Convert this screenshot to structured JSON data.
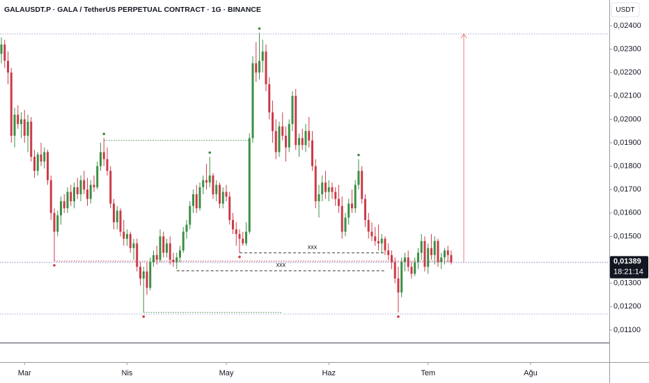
{
  "chart_data": {
    "type": "candlestick",
    "title": "GALAUSDT.P · GALA / TetherUS PERPETUAL CONTRACT · 1G · BINANCE",
    "currency": "USDT",
    "up_color": "#3b8f44",
    "down_color": "#cc3a48",
    "ohlc": [
      [
        0.0228,
        0.0235,
        0.0224,
        0.0232
      ],
      [
        0.0232,
        0.0234,
        0.0222,
        0.0225
      ],
      [
        0.0225,
        0.0229,
        0.0215,
        0.022
      ],
      [
        0.022,
        0.0222,
        0.019,
        0.0193
      ],
      [
        0.0193,
        0.0205,
        0.0188,
        0.0202
      ],
      [
        0.0202,
        0.0206,
        0.0196,
        0.0198
      ],
      [
        0.0198,
        0.0203,
        0.0192,
        0.02
      ],
      [
        0.02,
        0.0204,
        0.019,
        0.0193
      ],
      [
        0.0193,
        0.0202,
        0.0186,
        0.0199
      ],
      [
        0.0199,
        0.0201,
        0.0182,
        0.0184
      ],
      [
        0.0184,
        0.0187,
        0.0175,
        0.0178
      ],
      [
        0.0178,
        0.0186,
        0.0176,
        0.0185
      ],
      [
        0.0185,
        0.019,
        0.018,
        0.0182
      ],
      [
        0.0182,
        0.0188,
        0.0179,
        0.0186
      ],
      [
        0.0186,
        0.0187,
        0.0172,
        0.0174
      ],
      [
        0.0174,
        0.0176,
        0.0157,
        0.016
      ],
      [
        0.016,
        0.0162,
        0.01394,
        0.0152
      ],
      [
        0.0152,
        0.0161,
        0.015,
        0.0159
      ],
      [
        0.0159,
        0.0167,
        0.0155,
        0.0165
      ],
      [
        0.0165,
        0.0168,
        0.016,
        0.0162
      ],
      [
        0.0162,
        0.0171,
        0.016,
        0.0169
      ],
      [
        0.0169,
        0.0172,
        0.0163,
        0.0165
      ],
      [
        0.0165,
        0.0173,
        0.0162,
        0.0171
      ],
      [
        0.0171,
        0.0175,
        0.0166,
        0.0168
      ],
      [
        0.0168,
        0.0176,
        0.0165,
        0.0174
      ],
      [
        0.0174,
        0.0178,
        0.0168,
        0.017
      ],
      [
        0.017,
        0.0175,
        0.0163,
        0.0166
      ],
      [
        0.0166,
        0.0174,
        0.0164,
        0.0172
      ],
      [
        0.0172,
        0.0176,
        0.0169,
        0.0171
      ],
      [
        0.0171,
        0.0182,
        0.017,
        0.018
      ],
      [
        0.018,
        0.019,
        0.0178,
        0.0186
      ],
      [
        0.0186,
        0.0192,
        0.018,
        0.0183
      ],
      [
        0.0183,
        0.0188,
        0.0176,
        0.0178
      ],
      [
        0.0178,
        0.018,
        0.0162,
        0.0164
      ],
      [
        0.0164,
        0.0166,
        0.0153,
        0.0156
      ],
      [
        0.0156,
        0.0163,
        0.0153,
        0.0161
      ],
      [
        0.0161,
        0.0162,
        0.015,
        0.0152
      ],
      [
        0.0152,
        0.0157,
        0.0146,
        0.0149
      ],
      [
        0.0149,
        0.0153,
        0.0146,
        0.0151
      ],
      [
        0.0151,
        0.0152,
        0.0143,
        0.0145
      ],
      [
        0.0145,
        0.0149,
        0.014,
        0.0147
      ],
      [
        0.0147,
        0.0149,
        0.0135,
        0.0137
      ],
      [
        0.0137,
        0.0139,
        0.0129,
        0.0132
      ],
      [
        0.0132,
        0.0137,
        0.01175,
        0.0135
      ],
      [
        0.0135,
        0.0139,
        0.0125,
        0.0128
      ],
      [
        0.0128,
        0.0141,
        0.0127,
        0.0139
      ],
      [
        0.0139,
        0.0144,
        0.0137,
        0.0142
      ],
      [
        0.0142,
        0.0146,
        0.0138,
        0.014
      ],
      [
        0.014,
        0.0153,
        0.0139,
        0.015
      ],
      [
        0.015,
        0.0152,
        0.0141,
        0.0143
      ],
      [
        0.0143,
        0.0149,
        0.0141,
        0.0147
      ],
      [
        0.0147,
        0.015,
        0.0138,
        0.014
      ],
      [
        0.014,
        0.0143,
        0.0137,
        0.0139
      ],
      [
        0.0139,
        0.0143,
        0.0136,
        0.0141
      ],
      [
        0.0141,
        0.0146,
        0.0139,
        0.0144
      ],
      [
        0.0144,
        0.0154,
        0.0143,
        0.0152
      ],
      [
        0.0152,
        0.0157,
        0.0149,
        0.0155
      ],
      [
        0.0155,
        0.0165,
        0.0153,
        0.0163
      ],
      [
        0.0163,
        0.017,
        0.016,
        0.0168
      ],
      [
        0.0168,
        0.0172,
        0.016,
        0.0162
      ],
      [
        0.0162,
        0.0173,
        0.0161,
        0.0171
      ],
      [
        0.0171,
        0.0176,
        0.0168,
        0.0174
      ],
      [
        0.0174,
        0.0181,
        0.017,
        0.0173
      ],
      [
        0.0173,
        0.0184,
        0.0171,
        0.0176
      ],
      [
        0.0176,
        0.0177,
        0.0166,
        0.0168
      ],
      [
        0.0168,
        0.0174,
        0.0165,
        0.0172
      ],
      [
        0.0172,
        0.0173,
        0.0162,
        0.0164
      ],
      [
        0.0164,
        0.0171,
        0.0162,
        0.0169
      ],
      [
        0.0169,
        0.0172,
        0.0165,
        0.0167
      ],
      [
        0.0167,
        0.0169,
        0.0155,
        0.0157
      ],
      [
        0.0157,
        0.016,
        0.0151,
        0.0153
      ],
      [
        0.0153,
        0.0156,
        0.0146,
        0.0151
      ],
      [
        0.0151,
        0.0153,
        0.0143,
        0.0149
      ],
      [
        0.0149,
        0.0152,
        0.0146,
        0.0147
      ],
      [
        0.0147,
        0.0156,
        0.0146,
        0.0152
      ],
      [
        0.0152,
        0.0194,
        0.0151,
        0.0192
      ],
      [
        0.0192,
        0.0227,
        0.019,
        0.0224
      ],
      [
        0.0224,
        0.0233,
        0.0216,
        0.022
      ],
      [
        0.022,
        0.0237,
        0.0217,
        0.0225
      ],
      [
        0.0225,
        0.0234,
        0.022,
        0.0229
      ],
      [
        0.0229,
        0.0232,
        0.0212,
        0.0215
      ],
      [
        0.0215,
        0.0218,
        0.02,
        0.0203
      ],
      [
        0.0203,
        0.0208,
        0.019,
        0.0195
      ],
      [
        0.0195,
        0.02,
        0.0183,
        0.0186
      ],
      [
        0.0186,
        0.0199,
        0.0184,
        0.0197
      ],
      [
        0.0197,
        0.0203,
        0.0191,
        0.0193
      ],
      [
        0.0193,
        0.0197,
        0.0182,
        0.0188
      ],
      [
        0.0188,
        0.02,
        0.0186,
        0.0198
      ],
      [
        0.0198,
        0.0212,
        0.0195,
        0.021
      ],
      [
        0.021,
        0.0213,
        0.0187,
        0.0189
      ],
      [
        0.0189,
        0.0194,
        0.0184,
        0.0192
      ],
      [
        0.0192,
        0.0196,
        0.0187,
        0.0189
      ],
      [
        0.0189,
        0.0198,
        0.0186,
        0.0195
      ],
      [
        0.0195,
        0.0201,
        0.0188,
        0.0191
      ],
      [
        0.0191,
        0.0195,
        0.0178,
        0.018
      ],
      [
        0.018,
        0.0183,
        0.0162,
        0.0165
      ],
      [
        0.0165,
        0.0172,
        0.0158,
        0.0168
      ],
      [
        0.0168,
        0.0176,
        0.0165,
        0.0173
      ],
      [
        0.0173,
        0.0178,
        0.0166,
        0.0169
      ],
      [
        0.0169,
        0.0174,
        0.0165,
        0.0171
      ],
      [
        0.0171,
        0.0173,
        0.0166,
        0.0169
      ],
      [
        0.0169,
        0.0171,
        0.0163,
        0.0166
      ],
      [
        0.0166,
        0.0172,
        0.016,
        0.0163
      ],
      [
        0.0163,
        0.0167,
        0.0149,
        0.0152
      ],
      [
        0.0152,
        0.016,
        0.015,
        0.0158
      ],
      [
        0.0158,
        0.0166,
        0.0155,
        0.0164
      ],
      [
        0.0164,
        0.017,
        0.016,
        0.0162
      ],
      [
        0.0162,
        0.0174,
        0.016,
        0.0172
      ],
      [
        0.0172,
        0.0183,
        0.017,
        0.0178
      ],
      [
        0.0178,
        0.018,
        0.0164,
        0.0166
      ],
      [
        0.0166,
        0.0168,
        0.0154,
        0.0157
      ],
      [
        0.0157,
        0.016,
        0.0149,
        0.0152
      ],
      [
        0.0152,
        0.0156,
        0.0148,
        0.015
      ],
      [
        0.015,
        0.0154,
        0.0146,
        0.0148
      ],
      [
        0.0148,
        0.0155,
        0.0144,
        0.0147
      ],
      [
        0.0147,
        0.0151,
        0.0143,
        0.0149
      ],
      [
        0.0149,
        0.015,
        0.0142,
        0.0144
      ],
      [
        0.0144,
        0.0147,
        0.014,
        0.0142
      ],
      [
        0.0142,
        0.0144,
        0.0136,
        0.0139
      ],
      [
        0.0139,
        0.0141,
        0.013,
        0.0132
      ],
      [
        0.0132,
        0.0137,
        0.01175,
        0.0126
      ],
      [
        0.0126,
        0.0141,
        0.0124,
        0.0139
      ],
      [
        0.0139,
        0.0143,
        0.0135,
        0.0141
      ],
      [
        0.0141,
        0.0144,
        0.0135,
        0.0137
      ],
      [
        0.0137,
        0.0139,
        0.0132,
        0.0134
      ],
      [
        0.0134,
        0.0141,
        0.0133,
        0.0139
      ],
      [
        0.0139,
        0.0145,
        0.0136,
        0.0143
      ],
      [
        0.0143,
        0.0151,
        0.014,
        0.0148
      ],
      [
        0.0148,
        0.015,
        0.0135,
        0.0137
      ],
      [
        0.0137,
        0.0147,
        0.0134,
        0.0145
      ],
      [
        0.0145,
        0.0151,
        0.014,
        0.0142
      ],
      [
        0.0142,
        0.015,
        0.0138,
        0.0148
      ],
      [
        0.0148,
        0.0149,
        0.0137,
        0.0139
      ],
      [
        0.0139,
        0.0143,
        0.0136,
        0.0141
      ],
      [
        0.0141,
        0.0145,
        0.0138,
        0.0144
      ],
      [
        0.0144,
        0.0146,
        0.0139,
        0.0142
      ],
      [
        0.0142,
        0.0144,
        0.0138,
        0.01389
      ]
    ],
    "pivot_highs": [
      31,
      63,
      78,
      108
    ],
    "pivot_lows": [
      16,
      43,
      72,
      120
    ],
    "xlim": [
      -0.42,
      183.8
    ],
    "xticks": [
      {
        "value": 7,
        "label": "Mar"
      },
      {
        "value": 38,
        "label": "Nis"
      },
      {
        "value": 68,
        "label": "May"
      },
      {
        "value": 99,
        "label": "Haz"
      },
      {
        "value": 129,
        "label": "Tem"
      },
      {
        "value": 160,
        "label": "Ağu"
      }
    ],
    "ylim": [
      0.01046,
      0.0251
    ],
    "yticks": [
      {
        "value": 0.011,
        "label": "0,01100"
      },
      {
        "value": 0.012,
        "label": "0,01200"
      },
      {
        "value": 0.013,
        "label": "0,01300"
      },
      {
        "value": 0.014,
        "label": "0,01400"
      },
      {
        "value": 0.015,
        "label": "0,01500"
      },
      {
        "value": 0.016,
        "label": "0,01600"
      },
      {
        "value": 0.017,
        "label": "0,01700"
      },
      {
        "value": 0.018,
        "label": "0,01800"
      },
      {
        "value": 0.019,
        "label": "0,01900"
      },
      {
        "value": 0.02,
        "label": "0,02000"
      },
      {
        "value": 0.021,
        "label": "0,02100"
      },
      {
        "value": 0.022,
        "label": "0,02200"
      },
      {
        "value": 0.023,
        "label": "0,02300"
      },
      {
        "value": 0.024,
        "label": "0,02400"
      }
    ],
    "levels": [
      {
        "value": 0.02365,
        "color": "#a4a4cc",
        "dash": "dotted"
      },
      {
        "value": 0.01168,
        "color": "#a4a4cc",
        "dash": "dotted"
      },
      {
        "value": 0.01389,
        "color": "#7d7dd0",
        "dash": "dotted"
      },
      {
        "value": 0.0191,
        "from": 31,
        "to": 75,
        "color": "#3b8f44",
        "dash": "dotted"
      },
      {
        "value": 0.01175,
        "from": 43,
        "to": 85,
        "color": "#3b8f44",
        "dash": "dotted"
      },
      {
        "value": 0.01394,
        "from": 16,
        "to": 136,
        "color": "#cc3a48",
        "dash": "dotted"
      },
      {
        "value": 0.0143,
        "from": 72,
        "to": 116,
        "color": "#333333",
        "dash": "dashed",
        "label": "xxx"
      },
      {
        "value": 0.01353,
        "from": 53,
        "to": 116,
        "color": "#333333",
        "dash": "dashed",
        "label": "xxx"
      }
    ],
    "arrow": {
      "from": 0.01389,
      "to": 0.02365,
      "at": 139.8,
      "color": "#e08080"
    },
    "last_price": {
      "value": 0.01389,
      "label": "0,01389"
    },
    "countdown": "18:21:14"
  }
}
